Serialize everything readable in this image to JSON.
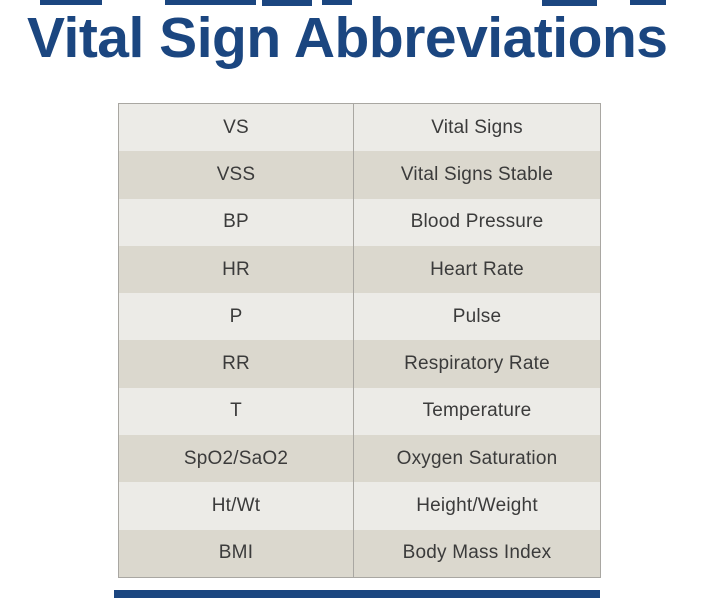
{
  "page": {
    "title": "Vital Sign Abbreviations"
  },
  "colors": {
    "title_navy": "#1b4680",
    "row_light": "#ecebe7",
    "row_dark": "#dbd8ce",
    "table_border": "#a9a7a2",
    "cell_text": "#3b3b3b",
    "background": "#ffffff"
  },
  "table": {
    "rows": [
      {
        "abbr": "VS",
        "meaning": "Vital Signs"
      },
      {
        "abbr": "VSS",
        "meaning": "Vital Signs Stable"
      },
      {
        "abbr": "BP",
        "meaning": "Blood Pressure"
      },
      {
        "abbr": "HR",
        "meaning": "Heart Rate"
      },
      {
        "abbr": "P",
        "meaning": "Pulse"
      },
      {
        "abbr": "RR",
        "meaning": "Respiratory Rate"
      },
      {
        "abbr": "T",
        "meaning": "Temperature"
      },
      {
        "abbr": "SpO2/SaO2",
        "meaning": "Oxygen Saturation"
      },
      {
        "abbr": "Ht/Wt",
        "meaning": "Height/Weight"
      },
      {
        "abbr": "BMI",
        "meaning": "Body Mass Index"
      }
    ]
  }
}
